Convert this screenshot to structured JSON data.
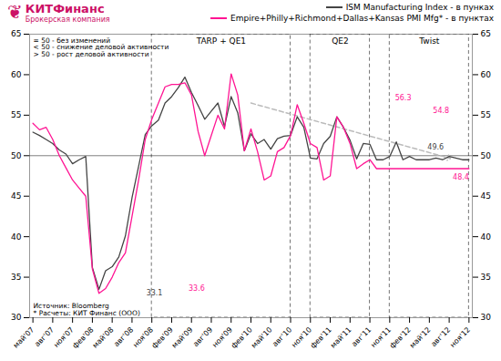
{
  "chart_data": {
    "type": "line",
    "categories": [
      "май'07",
      null,
      null,
      "авг'07",
      null,
      null,
      "ноя'07",
      null,
      null,
      "фев'08",
      null,
      null,
      "май'08",
      null,
      null,
      "авг'08",
      null,
      null,
      "ноя'08",
      null,
      null,
      "фев'09",
      null,
      null,
      "май'09",
      null,
      null,
      "авг'09",
      null,
      null,
      "ноя'09",
      null,
      null,
      "фев'10",
      null,
      null,
      "май'10",
      null,
      null,
      "авг'10",
      null,
      null,
      "ноя'10",
      null,
      null,
      "фев'11",
      null,
      null,
      "май'11",
      null,
      null,
      "авг'11",
      null,
      null,
      "ноя'11",
      null,
      null,
      "фев'12",
      null,
      null,
      "май'12",
      null,
      null,
      "авг'12",
      null,
      null,
      "ноя'12"
    ],
    "series": [
      {
        "name": "ISM Manufacturing Index - в пунках",
        "color": "#444444",
        "values": [
          52.9,
          52.5,
          52.0,
          51.5,
          50.7,
          50.2,
          49.0,
          49.5,
          49.9,
          36.2,
          33.5,
          35.8,
          36.3,
          37.5,
          40.1,
          44.8,
          48.7,
          52.6,
          53.7,
          54.4,
          56.5,
          57.3,
          58.4,
          59.7,
          57.8,
          56.2,
          54.5,
          55.5,
          56.5,
          53.6,
          57.3,
          55.3,
          50.6,
          52.7,
          51.5,
          52.0,
          50.8,
          52.1,
          52.4,
          52.5,
          54.8,
          53.5,
          49.7,
          49.6,
          51.5,
          52.4,
          54.8,
          53.5,
          51.9,
          49.6,
          51.5,
          51.4,
          49.5,
          49.5,
          49.9,
          51.7,
          49.5,
          49.9,
          49.5,
          49.5,
          49.5,
          49.7,
          49.5,
          49.9,
          49.7,
          49.5,
          49.5
        ]
      },
      {
        "name": "Empire+Philly+Richmond+Dallas+Kansas PMI Mfg* - в пунктах",
        "color": "#ff1493",
        "values": [
          54.0,
          53.2,
          53.5,
          52.0,
          50.0,
          48.5,
          47.0,
          46.0,
          45.0,
          36.0,
          33.0,
          33.6,
          35.0,
          36.8,
          38.0,
          42.5,
          47.0,
          52.0,
          54.5,
          56.5,
          58.5,
          58.8,
          58.8,
          59.0,
          57.5,
          53.0,
          50.0,
          52.5,
          55.0,
          53.3,
          60.1,
          57.5,
          50.6,
          53.3,
          50.5,
          47.0,
          47.5,
          50.5,
          51.0,
          52.5,
          56.3,
          54.0,
          51.5,
          51.0,
          47.0,
          47.5,
          54.8,
          53.5,
          51.5,
          48.4,
          49.0,
          49.5,
          48.4,
          48.4,
          48.4,
          48.4,
          48.4,
          48.4,
          48.4,
          48.4,
          48.4,
          48.4,
          48.4,
          48.4,
          48.4,
          48.4,
          48.4
        ]
      }
    ],
    "ylim": [
      30,
      65
    ],
    "yticks": [
      30,
      35,
      40,
      45,
      50,
      55,
      60,
      65
    ],
    "grid": false,
    "legend": "upper right",
    "hlines": [
      50
    ],
    "trend": {
      "x": [
        33,
        63
      ],
      "y": [
        56.5,
        49.7
      ],
      "color": "#bbbbbb",
      "line_style": "dashed",
      "marker": "arrow"
    },
    "regions": [
      {
        "label": "TARP + QE1",
        "x0": 18,
        "x1": 39
      },
      {
        "label": "QE2",
        "x0": 42,
        "x1": 51
      },
      {
        "label": "Twist",
        "x0": 54,
        "x1": 66
      }
    ],
    "annotations": [
      {
        "text": "33.1",
        "x": 21,
        "y": 33.1,
        "color": "#444444"
      },
      {
        "text": "33.6",
        "x": 23,
        "y": 33.6,
        "color": "#ff1493"
      },
      {
        "text": "56.3",
        "x": 57,
        "y": 56.3,
        "color": "#ff1493"
      },
      {
        "text": "54.8",
        "x": 60,
        "y": 54.8,
        "color": "#ff1493"
      },
      {
        "text": "49.6",
        "x": 63,
        "y": 49.7,
        "color": "#444444"
      },
      {
        "text": "48.4",
        "x": 63,
        "y": 48.4,
        "color": "#ff1493"
      }
    ],
    "notes": [
      "= 50 - без изменений",
      "< 50 - снижение деловой активности",
      "> 50 - рост деловой активности"
    ],
    "source": [
      "Источник: Bloomberg",
      "* Расчеты: КИТ Финанс (ООО)"
    ],
    "logo": {
      "symbol": "❦",
      "name": "КИТФинанс",
      "tagline": "Брокерская компания",
      "color": "#cc1166"
    }
  }
}
